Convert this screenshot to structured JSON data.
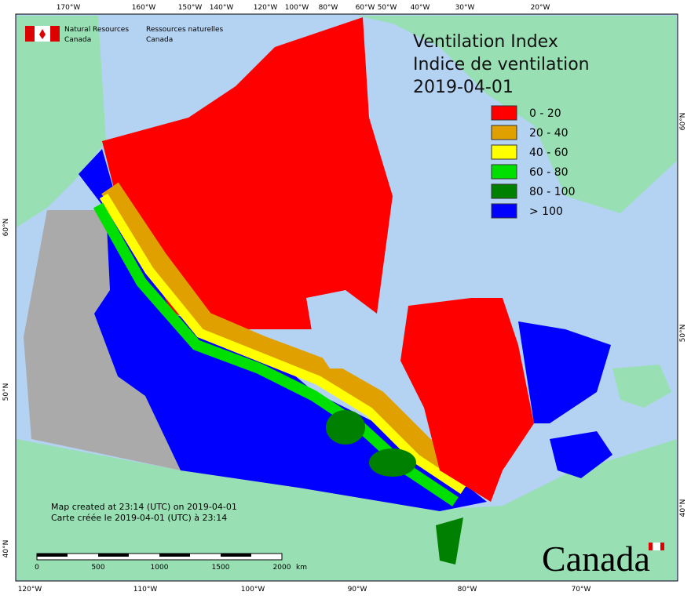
{
  "header": {
    "org_en": [
      "Natural Resources",
      "Canada"
    ],
    "org_fr": [
      "Ressources naturelles",
      "Canada"
    ]
  },
  "title": [
    "Ventilation Index",
    "Indice de ventilation",
    "2019-04-01"
  ],
  "legend": [
    {
      "label": "0 - 20",
      "color": "#ff0000"
    },
    {
      "label": "20 - 40",
      "color": "#e0a000"
    },
    {
      "label": "40 - 60",
      "color": "#ffff00"
    },
    {
      "label": "60 - 80",
      "color": "#00e000"
    },
    {
      "label": "80 - 100",
      "color": "#008000"
    },
    {
      "label": "> 100",
      "color": "#0000ff"
    }
  ],
  "graticule": {
    "top": [
      "170°W",
      "160°W",
      "150°W",
      "140°W",
      "120°W",
      "100°W",
      "80°W",
      "60°W",
      "50°W",
      "40°W",
      "30°W",
      "20°W"
    ],
    "bottom": [
      "120°W",
      "110°W",
      "100°W",
      "90°W",
      "80°W",
      "70°W"
    ],
    "left": [
      "60°N",
      "50°N",
      "40°N"
    ],
    "right": [
      "60°N",
      "50°N",
      "40°N"
    ]
  },
  "notes": [
    "Map created at 23:14 (UTC) on 2019-04-01",
    "Carte créée le 2019-04-01 (UTC) à 23:14"
  ],
  "scale": {
    "ticks": [
      "0",
      "500",
      "1000",
      "1500",
      "2000"
    ],
    "unit": "km"
  },
  "wordmark": "Canada"
}
